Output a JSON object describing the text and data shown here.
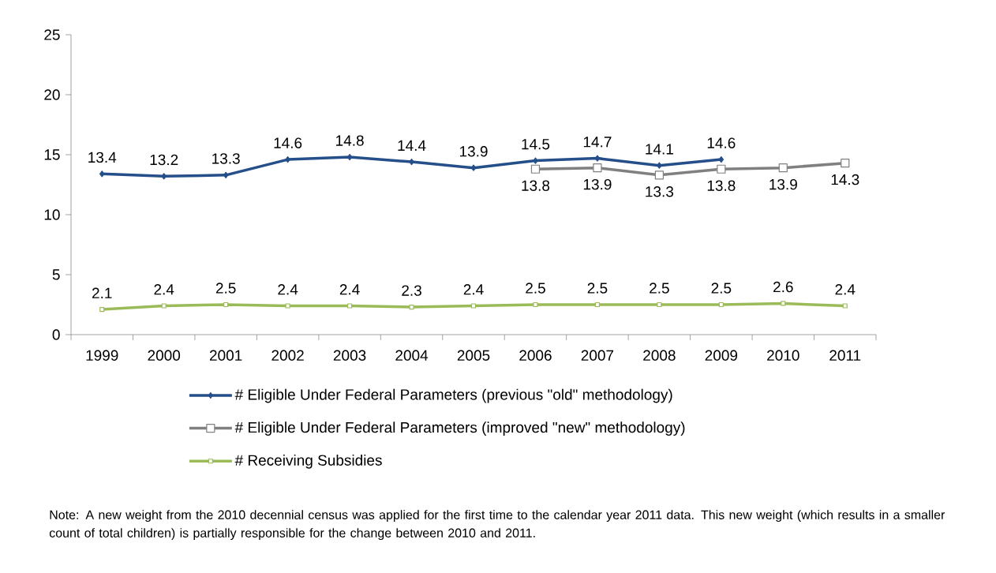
{
  "chart_data": {
    "type": "line",
    "categories": [
      "1999",
      "2000",
      "2001",
      "2002",
      "2003",
      "2004",
      "2005",
      "2006",
      "2007",
      "2008",
      "2009",
      "2010",
      "2011"
    ],
    "series": [
      {
        "name": "# Eligible Under Federal Parameters (previous \"old\" methodology)",
        "color": "#254f8a",
        "marker": "diamond",
        "values": [
          13.4,
          13.2,
          13.3,
          14.6,
          14.8,
          14.4,
          13.9,
          14.5,
          14.7,
          14.1,
          14.6,
          null,
          null
        ]
      },
      {
        "name": "# Eligible Under Federal Parameters (improved \"new\" methodology)",
        "color": "#808080",
        "marker": "square",
        "values": [
          null,
          null,
          null,
          null,
          null,
          null,
          null,
          13.8,
          13.9,
          13.3,
          13.8,
          13.9,
          14.3
        ]
      },
      {
        "name": "# Receiving Subsidies",
        "color": "#9bbb59",
        "marker": "square",
        "values": [
          2.1,
          2.4,
          2.5,
          2.4,
          2.4,
          2.3,
          2.4,
          2.5,
          2.5,
          2.5,
          2.5,
          2.6,
          2.4
        ]
      }
    ],
    "ylim": [
      0,
      25
    ],
    "yticks": [
      0,
      5,
      10,
      15,
      20,
      25
    ],
    "grid": false,
    "legend": "bottom",
    "data_labels": true,
    "line_style": "solid",
    "annotations": [
      "Note: A new weight from the 2010 decennial census was applied for the first time to the calendar year 2011 data.  This new weight (which results in a smaller count of total children) is partially responsible for the change between 2010 and 2011."
    ]
  }
}
